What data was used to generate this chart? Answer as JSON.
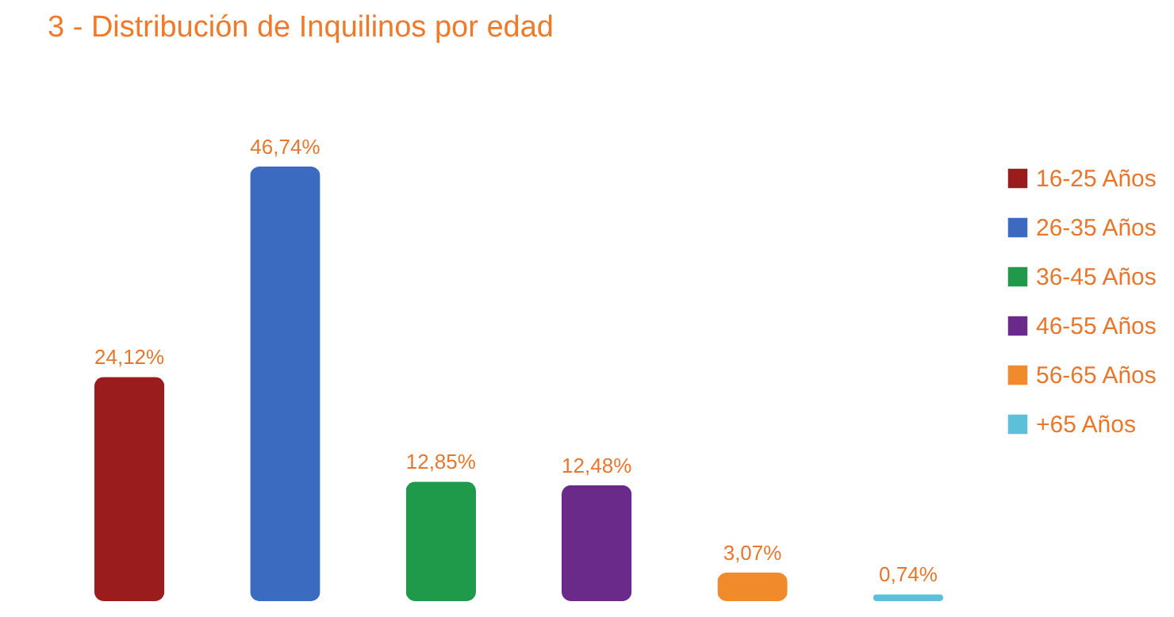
{
  "chart_data": {
    "type": "bar",
    "title": "3 - Distribución de Inquilinos por edad",
    "categories": [
      null,
      null,
      null,
      null,
      null,
      null
    ],
    "series": [
      {
        "name": "16-25 Años",
        "color": "#9b1c1c",
        "values": [
          24.12,
          null,
          null,
          null,
          null,
          null
        ],
        "value_labels": [
          "24,12%",
          null,
          null,
          null,
          null,
          null
        ]
      },
      {
        "name": "26-35 Años",
        "color": "#3a6bc0",
        "values": [
          null,
          46.74,
          null,
          null,
          null,
          null
        ],
        "value_labels": [
          null,
          "46,74%",
          null,
          null,
          null,
          null
        ]
      },
      {
        "name": "36-45 Años",
        "color": "#1e9a4a",
        "values": [
          null,
          null,
          12.85,
          null,
          null,
          null
        ],
        "value_labels": [
          null,
          null,
          "12,85%",
          null,
          null,
          null
        ]
      },
      {
        "name": "46-55 Años",
        "color": "#6a2a8a",
        "values": [
          null,
          null,
          null,
          12.48,
          null,
          null
        ],
        "value_labels": [
          null,
          null,
          null,
          "12,48%",
          null,
          null
        ]
      },
      {
        "name": "56-65 Años",
        "color": "#f08a2a",
        "values": [
          null,
          null,
          null,
          null,
          3.07,
          null
        ],
        "value_labels": [
          null,
          null,
          null,
          null,
          "3,07%",
          null
        ]
      },
      {
        "name": "+65 Años",
        "color": "#5cc0d8",
        "values": [
          null,
          null,
          null,
          null,
          null,
          0.74
        ],
        "value_labels": [
          null,
          null,
          null,
          null,
          null,
          "0,74%"
        ]
      }
    ],
    "stacked": true,
    "tick_labels": false,
    "legend": "right"
  }
}
